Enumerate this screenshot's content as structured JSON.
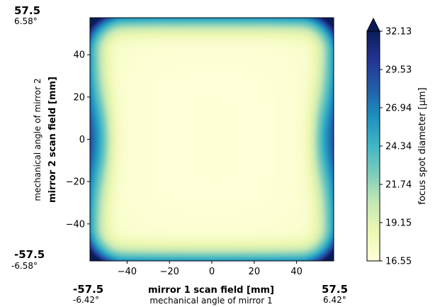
{
  "chart_data": {
    "type": "heatmap",
    "xlabel": "mirror 1 scan field [mm]",
    "x_sublabel": "mechanical angle of mirror 1",
    "ylabel": "mirror 2 scan field [mm]",
    "y_sublabel": "mechanical angle of mirror 2",
    "xlim": [
      -57.5,
      57.5
    ],
    "ylim": [
      -57.5,
      57.5
    ],
    "x_ticks": [
      -40,
      -20,
      0,
      20,
      40
    ],
    "y_ticks": [
      -40,
      -20,
      0,
      20,
      40
    ],
    "x_tick_labels": [
      "−40",
      "−20",
      "0",
      "20",
      "40"
    ],
    "y_tick_labels": [
      "−40",
      "−20",
      "0",
      "20",
      "40"
    ],
    "corner_annotations": {
      "x_min_value": "-57.5",
      "x_min_angle": "-6.42°",
      "x_max_value": "57.5",
      "x_max_angle": "6.42°",
      "y_max_value": "57.5",
      "y_max_angle": "6.58°",
      "y_min_value": "-57.5",
      "y_min_angle": "-6.58°"
    },
    "colorbar": {
      "label": "focus spot diameter [μm]",
      "min": 16.55,
      "max": 32.13,
      "extend": "max",
      "ticks": [
        16.55,
        19.15,
        21.74,
        24.34,
        26.94,
        29.53,
        32.13
      ],
      "tick_labels": [
        "16.55",
        "19.15",
        "21.74",
        "24.34",
        "26.94",
        "29.53",
        "32.13"
      ],
      "colormap": [
        "#ffffd9",
        "#edf8b1",
        "#c7e9b4",
        "#7fcdbb",
        "#41b6c4",
        "#1d91c0",
        "#225ea8",
        "#253494",
        "#081d58"
      ]
    },
    "field_summary": {
      "center_value": 16.6,
      "mid_left_edge_value": 21.0,
      "mid_right_edge_value": 21.0,
      "corner_value": 32.13
    }
  }
}
